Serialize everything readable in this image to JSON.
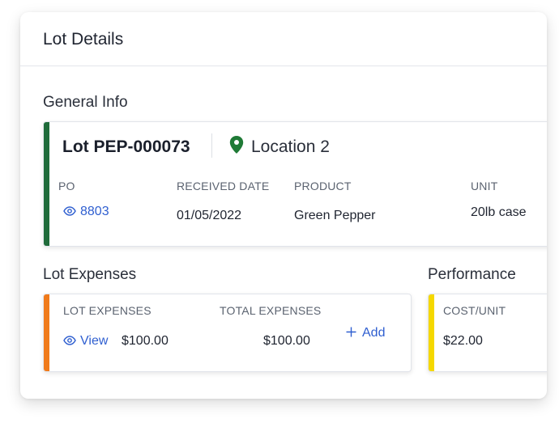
{
  "panel": {
    "title": "Lot Details"
  },
  "general_info": {
    "section_title": "General Info",
    "lot_name": "Lot PEP-000073",
    "location": "Location 2",
    "accent_color": "#1f6b3a",
    "location_icon_color": "#1f7a36",
    "fields": {
      "po_label": "PO",
      "po_value": "8803",
      "received_label": "RECEIVED DATE",
      "received_value": "01/05/2022",
      "product_label": "PRODUCT",
      "product_value": "Green Pepper",
      "unit_label": "UNIT",
      "unit_value": "20lb case"
    }
  },
  "lot_expenses": {
    "section_title": "Lot Expenses",
    "accent_color": "#f07a1a",
    "lot_expenses_label": "LOT EXPENSES",
    "view_label": "View",
    "lot_expenses_value": "$100.00",
    "total_expenses_label": "TOTAL EXPENSES",
    "total_expenses_value": "$100.00",
    "add_label": "Add"
  },
  "performance": {
    "section_title": "Performance",
    "accent_color": "#f5d800",
    "cost_unit_label": "COST/UNIT",
    "cost_unit_value": "$22.00"
  },
  "colors": {
    "link": "#2f5fd0"
  },
  "icons": [
    "location-pin-icon",
    "eye-icon",
    "plus-icon"
  ]
}
